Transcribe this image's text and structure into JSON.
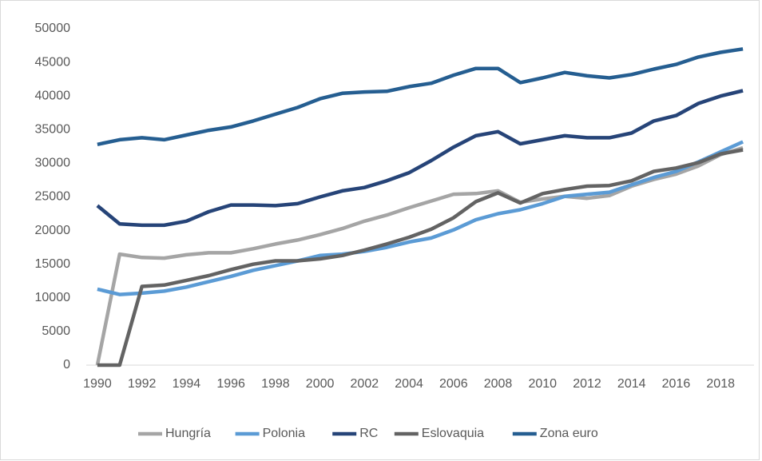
{
  "chart_data": {
    "type": "line",
    "x": [
      1990,
      1991,
      1992,
      1993,
      1994,
      1995,
      1996,
      1997,
      1998,
      1999,
      2000,
      2001,
      2002,
      2003,
      2004,
      2005,
      2006,
      2007,
      2008,
      2009,
      2010,
      2011,
      2012,
      2013,
      2014,
      2015,
      2016,
      2017,
      2018,
      2019
    ],
    "xlim": [
      1989.5,
      2019.5
    ],
    "xticks": [
      1990,
      1992,
      1994,
      1996,
      1998,
      2000,
      2002,
      2004,
      2006,
      2008,
      2010,
      2012,
      2014,
      2016,
      2018
    ],
    "ylim": [
      0,
      50000
    ],
    "yticks": [
      0,
      5000,
      10000,
      15000,
      20000,
      25000,
      30000,
      35000,
      40000,
      45000,
      50000
    ],
    "grid": false,
    "legend": "bottom",
    "series": [
      {
        "name": "Hungría",
        "color": "#a5a5a5",
        "values": [
          0,
          16500,
          16000,
          15900,
          16400,
          16700,
          16700,
          17300,
          18000,
          18600,
          19400,
          20300,
          21400,
          22300,
          23400,
          24400,
          25400,
          25500,
          25900,
          24200,
          24700,
          25100,
          24800,
          25200,
          26600,
          27600,
          28400,
          29600,
          31300,
          32300
        ]
      },
      {
        "name": "Polonia",
        "color": "#5b9bd5",
        "values": [
          11300,
          10500,
          10700,
          11000,
          11600,
          12400,
          13200,
          14100,
          14800,
          15500,
          16300,
          16500,
          16900,
          17500,
          18300,
          18900,
          20100,
          21600,
          22500,
          23100,
          24000,
          25100,
          25400,
          25700,
          26800,
          27900,
          28800,
          30200,
          31700,
          33200
        ]
      },
      {
        "name": "RC",
        "color": "#264478",
        "values": [
          23700,
          21000,
          20800,
          20800,
          21400,
          22800,
          23800,
          23800,
          23700,
          24000,
          25000,
          25900,
          26400,
          27400,
          28600,
          30400,
          32400,
          34100,
          34700,
          32900,
          33500,
          34100,
          33800,
          33800,
          34500,
          36300,
          37100,
          38900,
          40000,
          40800
        ]
      },
      {
        "name": "Eslovaquia",
        "color": "#636363",
        "values": [
          0,
          0,
          11700,
          11900,
          12600,
          13300,
          14200,
          15000,
          15500,
          15500,
          15800,
          16300,
          17100,
          18000,
          19000,
          20200,
          21900,
          24300,
          25600,
          24100,
          25500,
          26100,
          26600,
          26700,
          27400,
          28800,
          29300,
          30100,
          31400,
          32000
        ]
      },
      {
        "name": "Zona euro",
        "color": "#255e91",
        "values": [
          32800,
          33500,
          33800,
          33500,
          34200,
          34900,
          35400,
          36300,
          37300,
          38300,
          39600,
          40400,
          40600,
          40700,
          41400,
          41900,
          43100,
          44100,
          44100,
          42000,
          42700,
          43500,
          43000,
          42700,
          43200,
          44000,
          44700,
          45800,
          46500,
          47000
        ]
      }
    ]
  }
}
